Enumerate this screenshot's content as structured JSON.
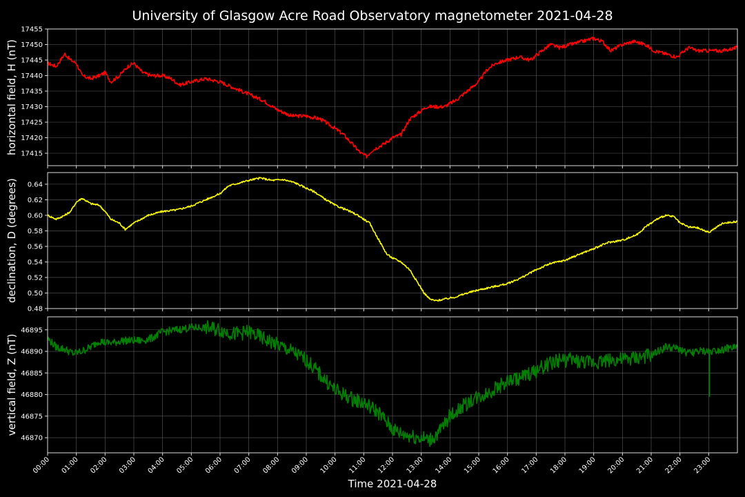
{
  "title": "University of Glasgow Acre Road Observatory magnetometer 2021-04-28",
  "chart_data": [
    {
      "type": "line",
      "ylabel": "horizontal field, H (nT)",
      "color": "#ff0000",
      "ylim": [
        17411,
        17455
      ],
      "yticks": [
        17415,
        17420,
        17425,
        17430,
        17435,
        17440,
        17445,
        17450,
        17455
      ],
      "series": [
        {
          "x": [
            0.0,
            0.3,
            0.6,
            0.8,
            1.0,
            1.2,
            1.5,
            1.8,
            2.0,
            2.2,
            2.5,
            2.8,
            3.0,
            3.3,
            3.6,
            4.0,
            4.3,
            4.6,
            5.0,
            5.5,
            6.0,
            6.5,
            7.0,
            7.5,
            8.0,
            8.5,
            9.0,
            9.5,
            10.0,
            10.3,
            10.6,
            10.9,
            11.1,
            11.3,
            11.5,
            11.7,
            12.0,
            12.3,
            12.6,
            12.9,
            13.2,
            13.5,
            13.8,
            14.2,
            14.6,
            15.0,
            15.3,
            15.6,
            16.0,
            16.4,
            16.8,
            17.2,
            17.5,
            17.8,
            18.2,
            18.6,
            19.0,
            19.3,
            19.6,
            20.0,
            20.4,
            20.8,
            21.1,
            21.5,
            21.9,
            22.3,
            22.6,
            23.0,
            23.5,
            23.99
          ],
          "y": [
            17444,
            17443,
            17447,
            17445,
            17444,
            17440,
            17439,
            17440,
            17441,
            17438,
            17440,
            17443,
            17444,
            17441,
            17440,
            17440,
            17439,
            17437,
            17438,
            17439,
            17438,
            17436,
            17434,
            17432,
            17429,
            17427,
            17427,
            17426,
            17423,
            17421,
            17418,
            17415,
            17414,
            17416,
            17417,
            17418,
            17420,
            17421,
            17426,
            17428,
            17430,
            17430,
            17430,
            17432,
            17435,
            17438,
            17442,
            17444,
            17445,
            17446,
            17445,
            17448,
            17450,
            17449,
            17450,
            17451,
            17452,
            17451,
            17448,
            17450,
            17451,
            17450,
            17448,
            17447,
            17446,
            17449,
            17448,
            17448,
            17448,
            17449
          ]
        }
      ]
    },
    {
      "type": "line",
      "ylabel": "declination, D (degrees)",
      "color": "#ffff00",
      "ylim": [
        0.48,
        0.655
      ],
      "yticks": [
        0.48,
        0.5,
        0.52,
        0.54,
        0.56,
        0.58,
        0.6,
        0.62,
        0.64
      ],
      "series": [
        {
          "x": [
            0.0,
            0.3,
            0.6,
            0.8,
            1.0,
            1.2,
            1.5,
            1.8,
            2.0,
            2.2,
            2.5,
            2.7,
            3.0,
            3.5,
            4.0,
            4.5,
            5.0,
            5.5,
            6.0,
            6.3,
            6.6,
            7.0,
            7.4,
            7.8,
            8.2,
            8.6,
            9.0,
            9.3,
            9.6,
            10.0,
            10.4,
            10.8,
            11.2,
            11.5,
            11.8,
            12.0,
            12.3,
            12.6,
            12.9,
            13.1,
            13.3,
            13.5,
            13.8,
            14.2,
            14.6,
            15.0,
            15.5,
            16.0,
            16.5,
            17.0,
            17.5,
            18.0,
            18.5,
            19.0,
            19.5,
            20.0,
            20.5,
            20.8,
            21.0,
            21.2,
            21.5,
            21.8,
            22.0,
            22.3,
            22.6,
            23.0,
            23.5,
            23.99
          ],
          "y": [
            0.6,
            0.595,
            0.6,
            0.605,
            0.617,
            0.622,
            0.615,
            0.613,
            0.605,
            0.595,
            0.59,
            0.582,
            0.59,
            0.6,
            0.605,
            0.607,
            0.612,
            0.62,
            0.628,
            0.638,
            0.641,
            0.645,
            0.648,
            0.645,
            0.646,
            0.642,
            0.635,
            0.63,
            0.622,
            0.613,
            0.607,
            0.6,
            0.59,
            0.57,
            0.55,
            0.545,
            0.54,
            0.53,
            0.512,
            0.5,
            0.492,
            0.49,
            0.492,
            0.495,
            0.5,
            0.504,
            0.508,
            0.512,
            0.52,
            0.53,
            0.538,
            0.542,
            0.55,
            0.557,
            0.565,
            0.568,
            0.575,
            0.585,
            0.59,
            0.595,
            0.6,
            0.598,
            0.59,
            0.585,
            0.584,
            0.578,
            0.59,
            0.592
          ]
        }
      ]
    },
    {
      "type": "line",
      "ylabel": "vertical field, Z (nT)",
      "color": "#008000",
      "ylim": [
        46866.5,
        46898
      ],
      "yticks": [
        46870,
        46875,
        46880,
        46885,
        46890,
        46895
      ],
      "series": [
        {
          "x": [
            0.0,
            0.3,
            0.6,
            0.9,
            1.2,
            1.5,
            1.8,
            2.0,
            2.3,
            2.6,
            3.0,
            3.3,
            3.6,
            4.0,
            4.5,
            5.0,
            5.5,
            6.0,
            6.5,
            7.0,
            7.5,
            8.0,
            8.5,
            9.0,
            9.5,
            10.0,
            10.3,
            10.6,
            11.0,
            11.5,
            12.0,
            12.3,
            12.6,
            13.0,
            13.3,
            13.6,
            14.0,
            14.4,
            14.8,
            15.2,
            15.6,
            16.0,
            16.5,
            17.0,
            17.4,
            17.8,
            18.2,
            18.6,
            19.0,
            19.5,
            20.0,
            20.5,
            21.0,
            21.5,
            22.0,
            22.3,
            22.6,
            23.0,
            23.5,
            23.99
          ],
          "y": [
            46893,
            46891,
            46890.5,
            46889.5,
            46890,
            46891,
            46892.5,
            46892,
            46892,
            46892.5,
            46892.5,
            46892.5,
            46893,
            46894.5,
            46895,
            46895.5,
            46895.5,
            46895,
            46894,
            46894.5,
            46893,
            46891.5,
            46890,
            46888,
            46884.5,
            46881,
            46880,
            46879,
            46878,
            46876,
            46872,
            46871,
            46870.5,
            46870,
            46869.5,
            46871,
            46875,
            46877,
            46879,
            46880,
            46881.5,
            46883,
            46884,
            46885.5,
            46887,
            46888,
            46888,
            46887.5,
            46887.5,
            46888,
            46888,
            46888.5,
            46889,
            46891,
            46890.5,
            46889.5,
            46890,
            46890,
            46890.5,
            46891
          ]
        }
      ],
      "annotation_spike": {
        "x": 23.03,
        "y": 46879.5
      }
    }
  ],
  "xaxis": {
    "label": "Time 2021-04-28",
    "xlim": [
      0,
      24
    ],
    "ticks": [
      "00:00",
      "01:00",
      "02:00",
      "03:00",
      "04:00",
      "05:00",
      "06:00",
      "07:00",
      "08:00",
      "09:00",
      "10:00",
      "11:00",
      "12:00",
      "13:00",
      "14:00",
      "15:00",
      "16:00",
      "17:00",
      "18:00",
      "19:00",
      "20:00",
      "21:00",
      "22:00",
      "23:00"
    ]
  }
}
